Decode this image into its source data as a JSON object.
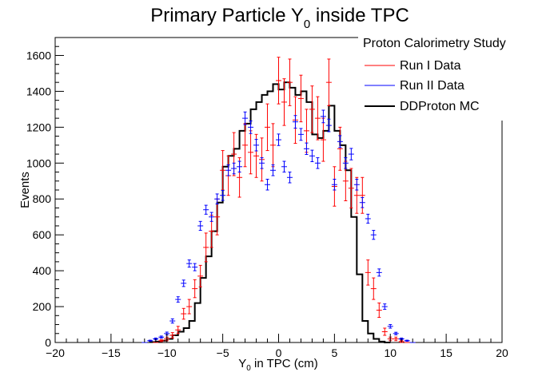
{
  "chart_data": {
    "type": "line",
    "title": "Primary Particle Y",
    "title_subscript": "0",
    "title_suffix": " inside TPC",
    "xlabel": "Y",
    "xlabel_subscript": "0",
    "xlabel_suffix": " in TPC (cm)",
    "ylabel": "Events",
    "xlim": [
      -20,
      20
    ],
    "ylim": [
      0,
      1700
    ],
    "grid": false,
    "x_ticks": [
      -20,
      -15,
      -10,
      -5,
      0,
      5,
      10,
      15,
      20
    ],
    "x_tick_labels": [
      "−20",
      "−15",
      "−10",
      "−5",
      "0",
      "5",
      "10",
      "15",
      "20"
    ],
    "y_ticks": [
      0,
      200,
      400,
      600,
      800,
      1000,
      1200,
      1400,
      1600
    ],
    "y_tick_labels": [
      "0",
      "200",
      "400",
      "600",
      "800",
      "1000",
      "1200",
      "1400",
      "1600"
    ],
    "legend": {
      "placement": "top-right",
      "header": "Proton Calorimetry Study",
      "entries": [
        "Run I Data",
        "Run II Data",
        "DDProton MC"
      ]
    },
    "series": [
      {
        "name": "Run I Data",
        "style": "errorbar",
        "color": "#ff0000",
        "x": [
          -11.0,
          -10.5,
          -10.0,
          -9.5,
          -9.0,
          -8.5,
          -8.0,
          -7.5,
          -7.0,
          -6.5,
          -6.0,
          -5.5,
          -5.0,
          -4.5,
          -4.0,
          -3.5,
          -3.0,
          -2.5,
          -2.0,
          -1.5,
          -1.0,
          -0.5,
          0.0,
          0.5,
          1.0,
          1.5,
          2.0,
          2.5,
          3.0,
          3.5,
          4.0,
          4.5,
          5.0,
          5.5,
          6.0,
          6.5,
          7.0,
          7.5,
          8.0,
          8.5,
          9.0,
          9.5,
          10.0,
          10.5,
          11.0,
          11.5,
          12.0
        ],
        "y": [
          0,
          10,
          20,
          40,
          70,
          160,
          200,
          300,
          370,
          530,
          620,
          700,
          960,
          930,
          1050,
          920,
          1100,
          1060,
          1040,
          1020,
          1200,
          1100,
          1460,
          1340,
          1450,
          1240,
          1360,
          1180,
          1300,
          1250,
          1130,
          1450,
          870,
          1080,
          900,
          860,
          820,
          820,
          390,
          300,
          180,
          60,
          20,
          20,
          5,
          0,
          0
        ],
        "yerr": [
          0,
          5,
          10,
          15,
          20,
          30,
          40,
          50,
          60,
          80,
          90,
          100,
          110,
          110,
          120,
          110,
          120,
          120,
          120,
          120,
          130,
          120,
          130,
          130,
          130,
          130,
          130,
          120,
          130,
          120,
          120,
          130,
          110,
          120,
          110,
          110,
          100,
          100,
          70,
          60,
          40,
          20,
          10,
          10,
          5,
          0,
          0
        ]
      },
      {
        "name": "Run II Data",
        "style": "errorbar",
        "color": "#0000ff",
        "x": [
          -12.0,
          -11.5,
          -11.0,
          -10.5,
          -10.0,
          -9.5,
          -9.0,
          -8.5,
          -8.0,
          -7.5,
          -7.0,
          -6.5,
          -6.0,
          -5.5,
          -5.0,
          -4.5,
          -4.0,
          -3.5,
          -3.0,
          -2.5,
          -2.0,
          -1.5,
          -1.0,
          -0.5,
          0.0,
          0.5,
          1.0,
          1.5,
          2.0,
          2.5,
          3.0,
          3.5,
          4.0,
          4.5,
          5.0,
          5.5,
          6.0,
          6.5,
          7.0,
          7.5,
          8.0,
          8.5,
          9.0,
          9.5,
          10.0,
          10.5,
          11.0,
          11.5,
          12.0
        ],
        "y": [
          0,
          10,
          20,
          30,
          50,
          120,
          240,
          330,
          440,
          420,
          650,
          740,
          700,
          800,
          820,
          960,
          970,
          980,
          1250,
          1200,
          1100,
          1000,
          880,
          960,
          1130,
          980,
          920,
          1230,
          1160,
          1080,
          1040,
          1000,
          1260,
          1210,
          880,
          1120,
          1000,
          1050,
          880,
          780,
          690,
          600,
          390,
          200,
          90,
          50,
          20,
          10,
          0
        ],
        "yerr": [
          0,
          3,
          5,
          6,
          8,
          12,
          15,
          18,
          20,
          20,
          25,
          25,
          25,
          28,
          28,
          30,
          30,
          30,
          35,
          35,
          32,
          30,
          30,
          30,
          32,
          30,
          30,
          35,
          33,
          32,
          32,
          30,
          35,
          35,
          30,
          33,
          30,
          32,
          30,
          28,
          25,
          25,
          20,
          15,
          10,
          7,
          5,
          3,
          0
        ]
      },
      {
        "name": "DDProton MC",
        "style": "step",
        "color": "#000000",
        "edges": [
          -11.5,
          -11.0,
          -10.5,
          -10.0,
          -9.5,
          -9.0,
          -8.5,
          -8.0,
          -7.5,
          -7.0,
          -6.5,
          -6.0,
          -5.5,
          -5.0,
          -4.5,
          -4.0,
          -3.5,
          -3.0,
          -2.5,
          -2.0,
          -1.5,
          -1.0,
          -0.5,
          0.0,
          0.5,
          1.0,
          1.5,
          2.0,
          2.5,
          3.0,
          3.5,
          4.0,
          4.5,
          5.0,
          5.5,
          6.0,
          6.5,
          7.0,
          7.5,
          8.0,
          8.5,
          9.0,
          9.5,
          10.0
        ],
        "values": [
          2,
          5,
          10,
          20,
          40,
          60,
          80,
          120,
          220,
          360,
          480,
          620,
          780,
          980,
          1040,
          1080,
          1180,
          1220,
          1300,
          1340,
          1380,
          1400,
          1440,
          1410,
          1450,
          1420,
          1380,
          1400,
          1340,
          1160,
          1140,
          1180,
          1320,
          1180,
          1100,
          960,
          700,
          380,
          120,
          50,
          20,
          5,
          0
        ]
      }
    ]
  }
}
